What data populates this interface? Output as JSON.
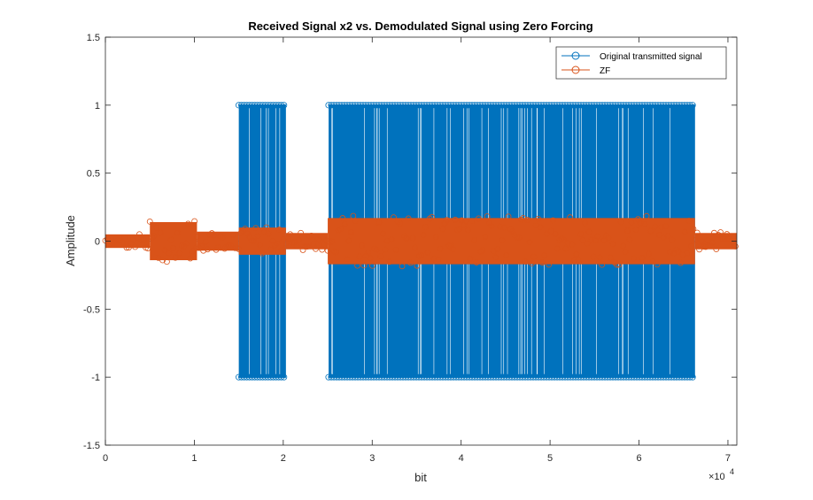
{
  "chart_data": {
    "type": "line",
    "title": "Received Signal x2 vs. Demodulated Signal using Zero Forcing",
    "xlabel": "bit",
    "ylabel": "Amplitude",
    "x_exponent_label": "×10",
    "x_exponent_power": "4",
    "xlim": [
      0,
      71000
    ],
    "ylim": [
      -1.5,
      1.5
    ],
    "xticks": [
      0,
      10000,
      20000,
      30000,
      40000,
      50000,
      60000,
      70000
    ],
    "xtick_labels": [
      "0",
      "1",
      "2",
      "3",
      "4",
      "5",
      "6",
      "7"
    ],
    "yticks": [
      -1.5,
      -1,
      -0.5,
      0,
      0.5,
      1,
      1.5
    ],
    "ytick_labels": [
      "-1.5",
      "-1",
      "-0.5",
      "0",
      "0.5",
      "1",
      "1.5"
    ],
    "grid": false,
    "legend_position": "top-right",
    "series": [
      {
        "name": "Original transmitted signal",
        "color": "#0072BD",
        "marker": "circle",
        "description": "bits at ±1 within active regions, 0 elsewhere",
        "active_segments": [
          {
            "start": 15000,
            "end": 20300,
            "level": 1
          },
          {
            "start": 25100,
            "end": 66300,
            "level": 1
          }
        ]
      },
      {
        "name": "ZF",
        "color": "#D95319",
        "marker": "circle",
        "description": "noisy demodulated output around zero",
        "envelope_segments": [
          {
            "start": 0,
            "end": 5000,
            "amp": 0.05
          },
          {
            "start": 5000,
            "end": 10300,
            "amp": 0.14
          },
          {
            "start": 10300,
            "end": 15000,
            "amp": 0.07
          },
          {
            "start": 15000,
            "end": 20300,
            "amp": 0.1
          },
          {
            "start": 20300,
            "end": 25000,
            "amp": 0.06
          },
          {
            "start": 25000,
            "end": 66300,
            "amp": 0.17
          },
          {
            "start": 66300,
            "end": 71000,
            "amp": 0.06
          }
        ]
      }
    ]
  }
}
